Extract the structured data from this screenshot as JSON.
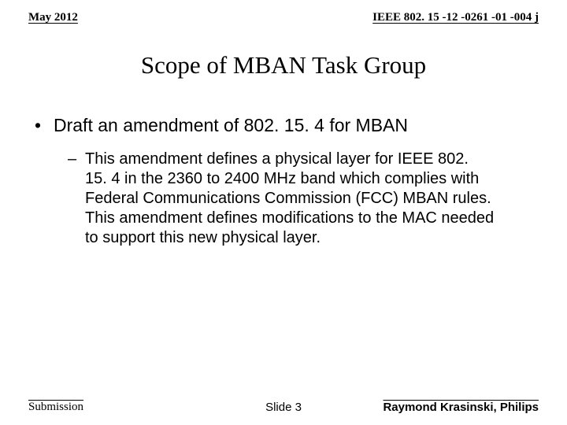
{
  "header": {
    "date": "May 2012",
    "docId": "IEEE 802. 15 -12 -0261 -01 -004 j"
  },
  "title": "Scope of MBAN Task Group",
  "content": {
    "l1": "Draft an amendment of 802. 15. 4 for MBAN",
    "l2": "This amendment defines a physical layer for IEEE 802. 15. 4 in the 2360 to 2400 MHz band which complies with Federal Communications Commission (FCC) MBAN rules. This amendment defines modifications to the MAC needed to support this new physical layer."
  },
  "footer": {
    "left": "Submission",
    "center": "Slide 3",
    "right": "Raymond Krasinski, Philips"
  }
}
